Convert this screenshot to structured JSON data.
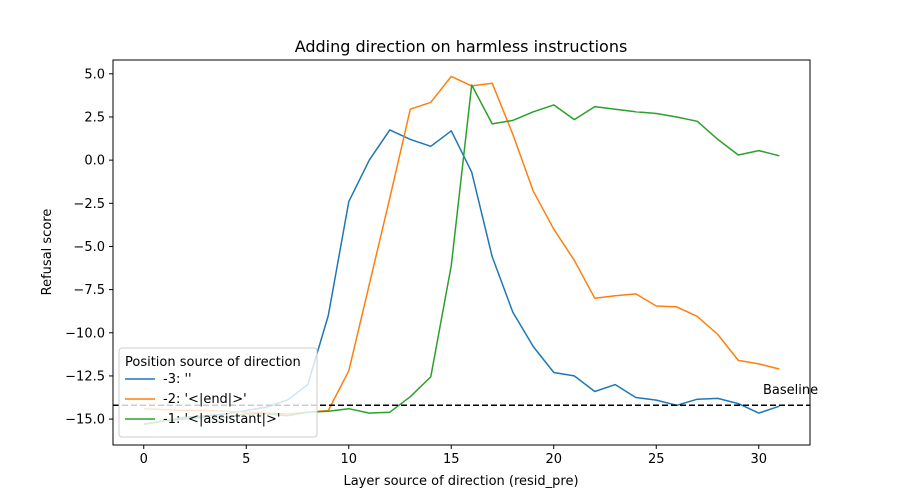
{
  "chart_data": {
    "type": "line",
    "title": "Adding direction on harmless instructions",
    "xlabel": "Layer source of direction (resid_pre)",
    "ylabel": "Refusal score",
    "xlim": [
      -1.5,
      32.5
    ],
    "ylim": [
      -16.5,
      5.8
    ],
    "xticks": [
      0,
      5,
      10,
      15,
      20,
      25,
      30
    ],
    "yticks": [
      5.0,
      2.5,
      0.0,
      -2.5,
      -5.0,
      -7.5,
      -10.0,
      -12.5,
      -15.0
    ],
    "ytick_labels": [
      "5.0",
      "2.5",
      "0.0",
      "−2.5",
      "−5.0",
      "−7.5",
      "−10.0",
      "−12.5",
      "−15.0"
    ],
    "grid": false,
    "legend_title": "Position source of direction",
    "legend_position": "lower-left",
    "x": [
      0,
      1,
      2,
      3,
      4,
      5,
      6,
      7,
      8,
      9,
      10,
      11,
      12,
      13,
      14,
      15,
      16,
      17,
      18,
      19,
      20,
      21,
      22,
      23,
      24,
      25,
      26,
      27,
      28,
      29,
      30,
      31
    ],
    "series": [
      {
        "name": "-3: ''",
        "color": "#1f77b4",
        "values": [
          -15.3,
          -15.1,
          -14.9,
          -14.8,
          -14.7,
          -14.5,
          -14.3,
          -13.9,
          -13.0,
          -9.0,
          -2.4,
          0.0,
          1.75,
          1.2,
          0.8,
          1.7,
          -0.7,
          -5.6,
          -8.8,
          -10.8,
          -12.3,
          -12.5,
          -13.4,
          -13.0,
          -13.75,
          -13.9,
          -14.2,
          -13.85,
          -13.8,
          -14.1,
          -14.65,
          -14.25
        ]
      },
      {
        "name": "-2: '<|end|>'",
        "color": "#ff7f0e",
        "values": [
          -14.4,
          -14.45,
          -14.5,
          -14.5,
          -14.55,
          -14.6,
          -14.65,
          -14.7,
          -14.6,
          -14.5,
          -12.2,
          -7.2,
          -2.2,
          2.95,
          3.35,
          4.85,
          4.3,
          4.45,
          1.5,
          -1.8,
          -4.0,
          -5.8,
          -8.0,
          -7.85,
          -7.75,
          -8.45,
          -8.5,
          -9.05,
          -10.1,
          -11.6,
          -11.8,
          -12.1
        ]
      },
      {
        "name": "-1: '<|assistant|>'",
        "color": "#2ca02c",
        "values": [
          -15.3,
          -15.1,
          -15.0,
          -14.9,
          -14.9,
          -14.7,
          -14.7,
          -14.8,
          -14.6,
          -14.55,
          -14.4,
          -14.65,
          -14.6,
          -13.7,
          -12.55,
          -6.1,
          4.35,
          2.1,
          2.3,
          2.8,
          3.2,
          2.35,
          3.1,
          2.95,
          2.8,
          2.7,
          2.5,
          2.25,
          1.2,
          0.3,
          0.55,
          0.25
        ]
      }
    ],
    "baseline": {
      "value": -14.2,
      "label": "Baseline",
      "color": "#000000"
    }
  }
}
